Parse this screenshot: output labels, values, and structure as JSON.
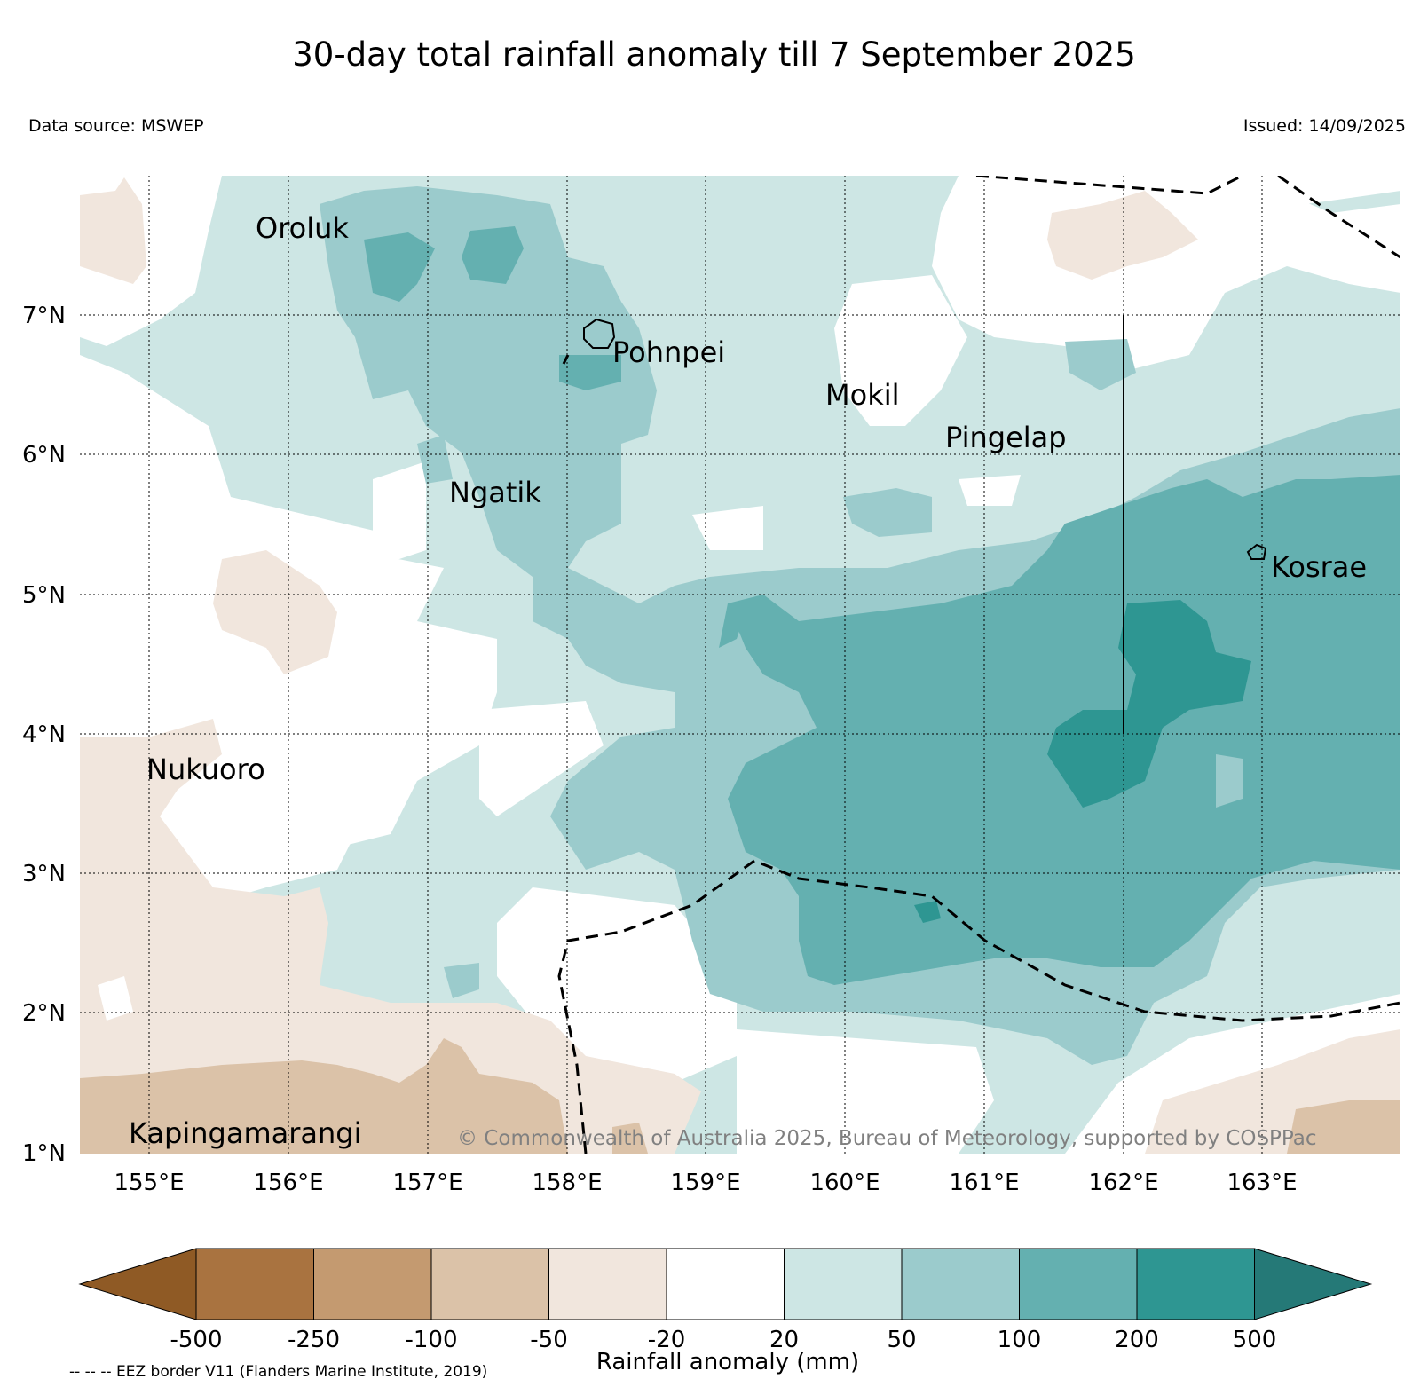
{
  "title": "30-day total rainfall anomaly till 7 September 2025",
  "data_source": "Data source: MSWEP",
  "issued": "Issued: 14/09/2025",
  "copyright": "© Commonwealth of Australia 2025, Bureau of Meteorology, supported by COSPPac",
  "eez_note": "-- -- -- EEZ border V11 (Flanders Marine Institute, 2019)",
  "colorbar": {
    "title": "Rainfall anomaly (mm)",
    "tick_labels": [
      "-500",
      "-250",
      "-100",
      "-50",
      "-20",
      "20",
      "50",
      "100",
      "200",
      "500"
    ],
    "colors": [
      "#8f5a25",
      "#a97340",
      "#c49a70",
      "#dbc2a8",
      "#f1e6dd",
      "#ffffff",
      "#cde6e4",
      "#9bcbcc",
      "#64b0b0",
      "#2e9692",
      "#257977"
    ]
  },
  "axes": {
    "lon_labels": [
      "155°E",
      "156°E",
      "157°E",
      "158°E",
      "159°E",
      "160°E",
      "161°E",
      "162°E",
      "163°E"
    ],
    "lat_labels": [
      "7°N",
      "6°N",
      "5°N",
      "4°N",
      "3°N",
      "2°N",
      "1°N"
    ],
    "gridlines": "on"
  },
  "places": [
    {
      "name": "Oroluk",
      "lon": 155.75,
      "lat": 7.7
    },
    {
      "name": "Pohnpei",
      "lon": 158.2,
      "lat": 6.85
    },
    {
      "name": "Mokil",
      "lon": 159.85,
      "lat": 6.55
    },
    {
      "name": "Pingelap",
      "lon": 160.7,
      "lat": 6.2
    },
    {
      "name": "Ngatik",
      "lon": 157.15,
      "lat": 5.8
    },
    {
      "name": "Kosrae",
      "lon": 163.0,
      "lat": 5.3
    },
    {
      "name": "Nukuoro",
      "lon": 154.95,
      "lat": 3.85
    },
    {
      "name": "Kapingamarangi",
      "lon": 154.8,
      "lat": 1.25
    }
  ]
}
